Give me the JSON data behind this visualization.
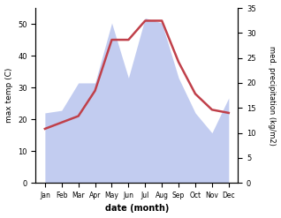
{
  "months": [
    "Jan",
    "Feb",
    "Mar",
    "Apr",
    "May",
    "Jun",
    "Jul",
    "Aug",
    "Sep",
    "Oct",
    "Nov",
    "Dec"
  ],
  "temp": [
    17,
    19,
    21,
    29,
    45,
    45,
    51,
    51,
    38,
    28,
    23,
    22
  ],
  "precip": [
    14,
    14.5,
    20,
    20,
    32,
    21,
    33,
    32,
    21,
    14,
    10,
    17
  ],
  "temp_color": "#c0404a",
  "precip_fill_color": "#b8c4ee",
  "temp_ylim": [
    0,
    55
  ],
  "precip_ylim": [
    0,
    35
  ],
  "temp_yticks": [
    0,
    10,
    20,
    30,
    40,
    50
  ],
  "precip_yticks": [
    0,
    5,
    10,
    15,
    20,
    25,
    30,
    35
  ],
  "xlabel": "date (month)",
  "ylabel_left": "max temp (C)",
  "ylabel_right": "med. precipitation (kg/m2)",
  "bg_color": "#ffffff"
}
